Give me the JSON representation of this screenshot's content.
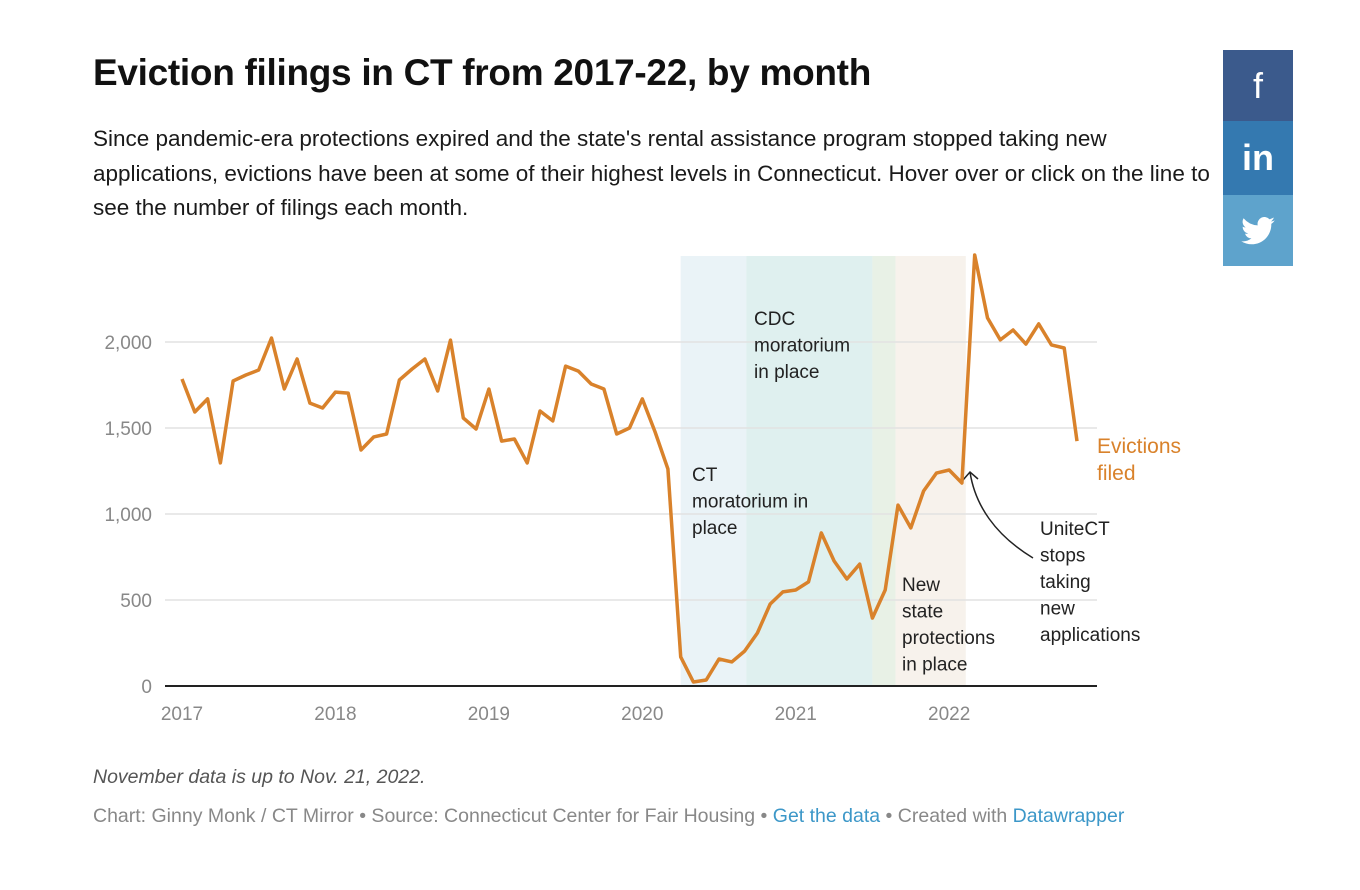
{
  "header": {
    "title": "Eviction filings in CT from 2017-22, by month",
    "subtitle": "Since pandemic-era protections expired and the state's rental assistance program stopped taking new applications, evictions have been at some of their highest levels in Connecticut. Hover over or click on the line to see the number of filings each month."
  },
  "social": [
    {
      "name": "facebook",
      "glyph": "f",
      "color": "#3b5a8c"
    },
    {
      "name": "linkedin",
      "glyph": "in",
      "color": "#3479b0"
    },
    {
      "name": "twitter",
      "glyph": "twitter-bird-icon",
      "color": "#5ea3cc"
    }
  ],
  "chart_data": {
    "type": "line",
    "title": "",
    "xlabel": "",
    "ylabel": "",
    "ylim": [
      0,
      2500
    ],
    "y_ticks": [
      "0",
      "500",
      "1,000",
      "1,500",
      "2,000"
    ],
    "y_tick_values": [
      0,
      500,
      1000,
      1500,
      2000
    ],
    "x_ticks": [
      "2017",
      "2018",
      "2019",
      "2020",
      "2021",
      "2022"
    ],
    "grid": true,
    "line_color": "#d9822b",
    "series": [
      {
        "name": "Evictions filed",
        "start": "2017-01",
        "values": [
          1785,
          1593,
          1669,
          1297,
          1773,
          1808,
          1837,
          2023,
          1727,
          1901,
          1645,
          1616,
          1709,
          1703,
          1372,
          1448,
          1465,
          1779,
          1843,
          1901,
          1715,
          2011,
          1558,
          1494,
          1727,
          1424,
          1436,
          1297,
          1599,
          1541,
          1860,
          1831,
          1756,
          1727,
          1465,
          1500,
          1669,
          1477,
          1262,
          169,
          23,
          35,
          157,
          140,
          203,
          308,
          477,
          547,
          558,
          605,
          890,
          727,
          622,
          709,
          395,
          558,
          1052,
          919,
          1134,
          1238,
          1256,
          1180,
          2506,
          2140,
          2012,
          2070,
          1988,
          2105,
          1983,
          1965,
          1424
        ]
      }
    ],
    "series_label": [
      "Evictions",
      "filed"
    ],
    "ranges": [
      {
        "label": [
          "CT",
          "moratorium in",
          "place"
        ],
        "start": "2020-04-01",
        "end": "2020-09-05",
        "color": "#eaf3f7"
      },
      {
        "label": [
          "CDC",
          "moratorium",
          "in place"
        ],
        "start": "2020-09-05",
        "end": "2021-07-01",
        "color": "#dff0ef"
      },
      {
        "label": [],
        "start": "2021-07-01",
        "end": "2021-08-25",
        "color": "#e8f1e6"
      },
      {
        "label": [
          "New",
          "state",
          "protections",
          "in place"
        ],
        "start": "2021-08-25",
        "end": "2022-02-10",
        "color": "#f7f2ec"
      }
    ],
    "annotation": {
      "label": [
        "UniteCT",
        "stops",
        "taking",
        "new",
        "applications"
      ],
      "points_to": "2022-02"
    }
  },
  "footer": {
    "note": "November data is up to Nov. 21, 2022.",
    "credit": "Chart: Ginny Monk / CT Mirror • Source: Connecticut Center for Fair Housing •",
    "get_data": "Get the data",
    "created": "• Created with",
    "datawrapper": "Datawrapper"
  }
}
